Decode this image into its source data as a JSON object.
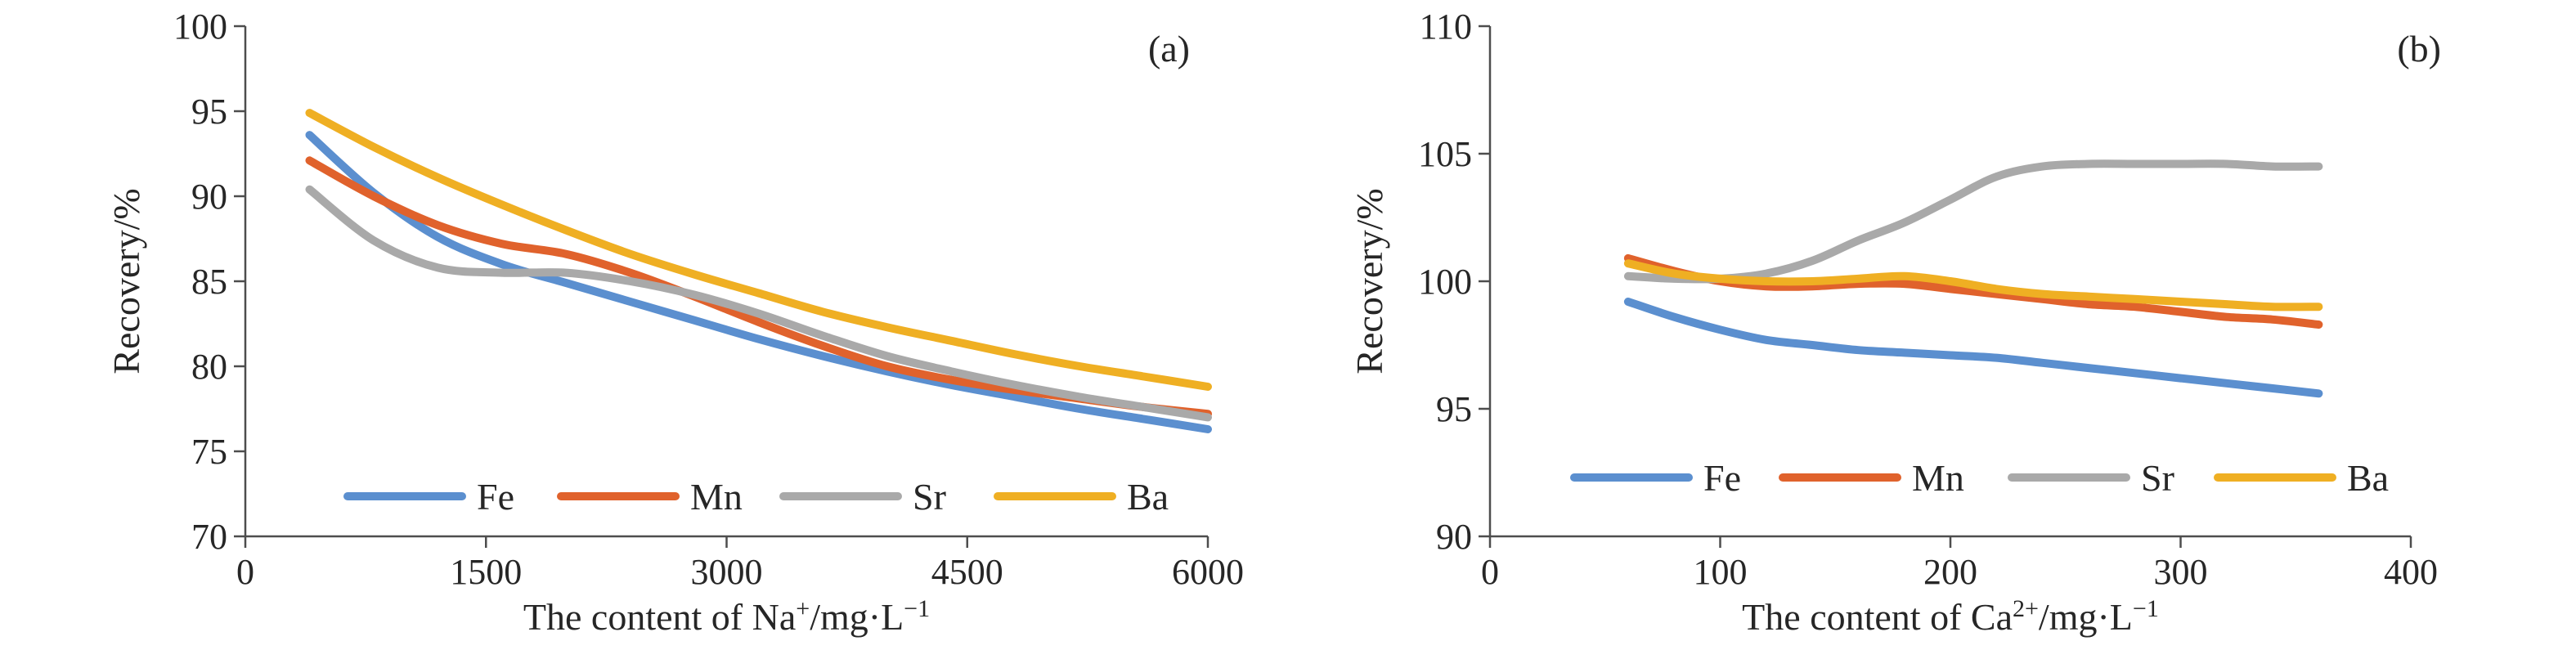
{
  "chart_data": [
    {
      "type": "line",
      "panel_label": "(a)",
      "xlabel": "The content of Na",
      "xlabel_sup": "+",
      "xlabel_unit": "/mg·L",
      "xlabel_unit_sup": "−1",
      "ylabel": "Recovery/%",
      "xlim": [
        0,
        6000
      ],
      "ylim": [
        70,
        100
      ],
      "xticks": [
        0,
        1500,
        3000,
        4500,
        6000
      ],
      "yticks": [
        70,
        75,
        80,
        85,
        90,
        95,
        100
      ],
      "x": [
        400,
        800,
        1200,
        1600,
        2000,
        2400,
        2800,
        3200,
        3600,
        4000,
        4400,
        4800,
        5200,
        5600,
        6000
      ],
      "series": [
        {
          "name": "Fe",
          "color": "#5b8fcf",
          "values": [
            93.6,
            90.2,
            87.6,
            86.0,
            84.9,
            83.8,
            82.7,
            81.6,
            80.6,
            79.7,
            78.9,
            78.2,
            77.5,
            76.9,
            76.3
          ]
        },
        {
          "name": "Mn",
          "color": "#e0622c",
          "values": [
            92.1,
            90.0,
            88.3,
            87.2,
            86.6,
            85.5,
            84.1,
            82.6,
            81.2,
            80.0,
            79.2,
            78.6,
            78.1,
            77.6,
            77.2
          ]
        },
        {
          "name": "Sr",
          "color": "#a9a9a9",
          "values": [
            90.4,
            87.4,
            85.8,
            85.5,
            85.5,
            85.0,
            84.2,
            83.1,
            81.8,
            80.6,
            79.7,
            78.9,
            78.2,
            77.6,
            77.0
          ]
        },
        {
          "name": "Ba",
          "color": "#efaf23",
          "values": [
            94.9,
            92.9,
            91.1,
            89.5,
            88.0,
            86.6,
            85.4,
            84.3,
            83.2,
            82.3,
            81.5,
            80.7,
            80.0,
            79.4,
            78.8
          ]
        }
      ],
      "legend": "bottom"
    },
    {
      "type": "line",
      "panel_label": "(b)",
      "xlabel": "The content of Ca",
      "xlabel_sup": "2+",
      "xlabel_unit": "/mg·L",
      "xlabel_unit_sup": "−1",
      "ylabel": "Recovery/%",
      "xlim": [
        0,
        400
      ],
      "ylim": [
        90,
        110
      ],
      "xticks": [
        0,
        100,
        200,
        300,
        400
      ],
      "yticks": [
        90,
        95,
        100,
        105,
        110
      ],
      "x": [
        60,
        80,
        100,
        120,
        140,
        160,
        180,
        200,
        220,
        240,
        260,
        280,
        300,
        320,
        340,
        360
      ],
      "series": [
        {
          "name": "Fe",
          "color": "#5b8fcf",
          "values": [
            99.2,
            98.6,
            98.1,
            97.7,
            97.5,
            97.3,
            97.2,
            97.1,
            97.0,
            96.8,
            96.6,
            96.4,
            96.2,
            96.0,
            95.8,
            95.6
          ]
        },
        {
          "name": "Mn",
          "color": "#e0622c",
          "values": [
            100.9,
            100.4,
            100.0,
            99.8,
            99.8,
            99.9,
            99.9,
            99.7,
            99.5,
            99.3,
            99.1,
            99.0,
            98.8,
            98.6,
            98.5,
            98.3
          ]
        },
        {
          "name": "Sr",
          "color": "#a9a9a9",
          "values": [
            100.2,
            100.1,
            100.1,
            100.3,
            100.8,
            101.6,
            102.3,
            103.2,
            104.1,
            104.5,
            104.6,
            104.6,
            104.6,
            104.6,
            104.5,
            104.5
          ]
        },
        {
          "name": "Ba",
          "color": "#efaf23",
          "values": [
            100.7,
            100.3,
            100.1,
            100.0,
            100.0,
            100.1,
            100.2,
            100.0,
            99.7,
            99.5,
            99.4,
            99.3,
            99.2,
            99.1,
            99.0,
            99.0
          ]
        }
      ],
      "legend": "bottom"
    }
  ]
}
